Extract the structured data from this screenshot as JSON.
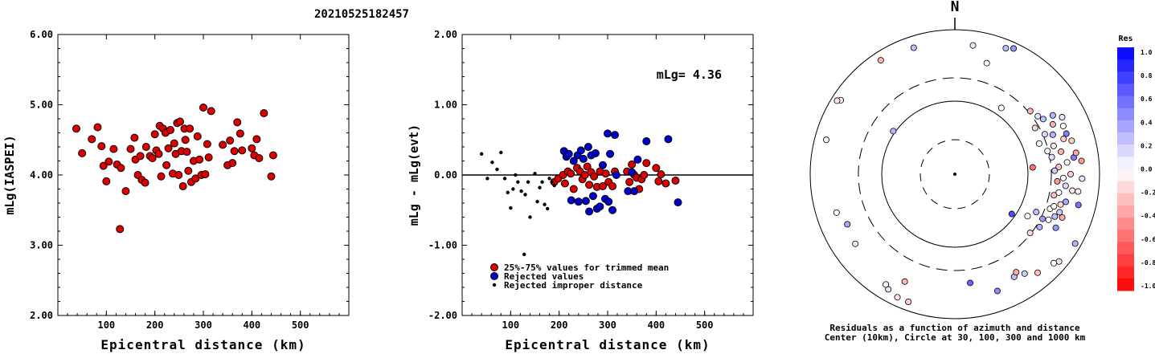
{
  "title": "20210525182457",
  "chart_data": [
    {
      "type": "scatter",
      "xlabel": "Epicentral distance (km)",
      "ylabel": "mLg(IASPEI)",
      "xlim": [
        0,
        600
      ],
      "ylim": [
        2.0,
        6.0
      ],
      "xticks": [
        "100",
        "200",
        "300",
        "400",
        "500"
      ],
      "yticks": [
        "2.00",
        "3.00",
        "4.00",
        "5.00",
        "6.00"
      ],
      "series": [
        {
          "color": "#dd0000",
          "points": [
            [
              38,
              4.66
            ],
            [
              50,
              4.31
            ],
            [
              70,
              4.51
            ],
            [
              82,
              4.68
            ],
            [
              90,
              4.41
            ],
            [
              94,
              4.13
            ],
            [
              100,
              3.91
            ],
            [
              105,
              4.19
            ],
            [
              115,
              4.37
            ],
            [
              122,
              4.15
            ],
            [
              128,
              3.23
            ],
            [
              130,
              4.1
            ],
            [
              140,
              3.77
            ],
            [
              150,
              4.37
            ],
            [
              158,
              4.53
            ],
            [
              160,
              4.22
            ],
            [
              165,
              4.0
            ],
            [
              170,
              4.27
            ],
            [
              173,
              3.93
            ],
            [
              180,
              3.89
            ],
            [
              182,
              4.4
            ],
            [
              190,
              4.27
            ],
            [
              195,
              4.24
            ],
            [
              200,
              4.58
            ],
            [
              203,
              4.35
            ],
            [
              208,
              4.3
            ],
            [
              210,
              4.7
            ],
            [
              213,
              3.98
            ],
            [
              217,
              4.66
            ],
            [
              222,
              4.6
            ],
            [
              224,
              4.14
            ],
            [
              228,
              4.38
            ],
            [
              232,
              4.64
            ],
            [
              237,
              4.02
            ],
            [
              240,
              4.45
            ],
            [
              243,
              4.3
            ],
            [
              246,
              4.74
            ],
            [
              249,
              4.0
            ],
            [
              252,
              4.76
            ],
            [
              255,
              4.34
            ],
            [
              258,
              3.84
            ],
            [
              261,
              4.66
            ],
            [
              263,
              4.5
            ],
            [
              266,
              4.33
            ],
            [
              269,
              4.06
            ],
            [
              272,
              4.66
            ],
            [
              275,
              3.9
            ],
            [
              280,
              4.2
            ],
            [
              284,
              3.95
            ],
            [
              288,
              4.55
            ],
            [
              292,
              4.22
            ],
            [
              296,
              4.0
            ],
            [
              300,
              4.96
            ],
            [
              304,
              4.01
            ],
            [
              308,
              4.44
            ],
            [
              311,
              4.25
            ],
            [
              316,
              4.91
            ],
            [
              340,
              4.43
            ],
            [
              350,
              4.14
            ],
            [
              355,
              4.49
            ],
            [
              360,
              4.17
            ],
            [
              364,
              4.34
            ],
            [
              370,
              4.75
            ],
            [
              376,
              4.59
            ],
            [
              380,
              4.35
            ],
            [
              400,
              4.38
            ],
            [
              405,
              4.28
            ],
            [
              410,
              4.51
            ],
            [
              415,
              4.24
            ],
            [
              425,
              4.88
            ],
            [
              440,
              3.98
            ],
            [
              444,
              4.28
            ]
          ]
        }
      ]
    },
    {
      "type": "scatter",
      "xlabel": "Epicentral distance (km)",
      "ylabel": "mLg - mLg(evt)",
      "xlim": [
        0,
        600
      ],
      "ylim": [
        -2.0,
        2.0
      ],
      "xticks": [
        "100",
        "200",
        "300",
        "400",
        "500"
      ],
      "yticks": [
        "-2.00",
        "-1.00",
        "0.00",
        "1.00",
        "2.00"
      ],
      "annotation": "mLg= 4.36",
      "reference_line": 0.0,
      "legend": [
        "25%-75% values for trimmed mean",
        "Rejected values",
        "Rejected improper distance"
      ],
      "legend_position": "bottom-left",
      "series": [
        {
          "name": "25%-75% values for trimmed mean",
          "color": "#dd0000",
          "points": [
            [
              190,
              -0.1
            ],
            [
              198,
              -0.05
            ],
            [
              208,
              0.0
            ],
            [
              212,
              -0.12
            ],
            [
              218,
              0.05
            ],
            [
              224,
              0.02
            ],
            [
              230,
              -0.2
            ],
            [
              237,
              0.1
            ],
            [
              243,
              0.05
            ],
            [
              248,
              -0.06
            ],
            [
              253,
              0.0
            ],
            [
              258,
              0.12
            ],
            [
              262,
              -0.14
            ],
            [
              266,
              0.04
            ],
            [
              272,
              -0.02
            ],
            [
              278,
              -0.17
            ],
            [
              284,
              0.05
            ],
            [
              290,
              -0.16
            ],
            [
              296,
              0.02
            ],
            [
              302,
              -0.1
            ],
            [
              310,
              -0.16
            ],
            [
              315,
              0.05
            ],
            [
              340,
              0.05
            ],
            [
              345,
              -0.1
            ],
            [
              350,
              0.15
            ],
            [
              355,
              0.0
            ],
            [
              360,
              -0.04
            ],
            [
              365,
              -0.2
            ],
            [
              370,
              -0.06
            ],
            [
              375,
              0.0
            ],
            [
              380,
              0.17
            ],
            [
              400,
              0.1
            ],
            [
              405,
              -0.09
            ],
            [
              410,
              0.01
            ],
            [
              420,
              -0.12
            ],
            [
              440,
              -0.08
            ]
          ]
        },
        {
          "name": "Rejected values",
          "color": "#0000cc",
          "points": [
            [
              210,
              0.34
            ],
            [
              215,
              0.26
            ],
            [
              220,
              0.3
            ],
            [
              225,
              -0.36
            ],
            [
              230,
              0.2
            ],
            [
              238,
              0.28
            ],
            [
              240,
              -0.38
            ],
            [
              245,
              0.35
            ],
            [
              250,
              0.23
            ],
            [
              255,
              -0.37
            ],
            [
              260,
              0.4
            ],
            [
              262,
              -0.52
            ],
            [
              266,
              0.28
            ],
            [
              270,
              -0.3
            ],
            [
              275,
              0.31
            ],
            [
              278,
              -0.48
            ],
            [
              284,
              -0.45
            ],
            [
              290,
              0.14
            ],
            [
              295,
              -0.34
            ],
            [
              300,
              0.59
            ],
            [
              302,
              -0.38
            ],
            [
              305,
              0.3
            ],
            [
              310,
              -0.5
            ],
            [
              315,
              0.57
            ],
            [
              318,
              0.0
            ],
            [
              342,
              -0.23
            ],
            [
              350,
              0.04
            ],
            [
              355,
              -0.23
            ],
            [
              362,
              0.22
            ],
            [
              380,
              0.48
            ],
            [
              425,
              0.51
            ],
            [
              445,
              -0.39
            ]
          ]
        },
        {
          "name": "Rejected improper distance",
          "color": "#000000",
          "points": [
            [
              40,
              0.3
            ],
            [
              52,
              -0.05
            ],
            [
              62,
              0.18
            ],
            [
              72,
              0.08
            ],
            [
              80,
              0.32
            ],
            [
              88,
              -0.05
            ],
            [
              94,
              -0.25
            ],
            [
              100,
              -0.47
            ],
            [
              105,
              -0.2
            ],
            [
              110,
              0.0
            ],
            [
              115,
              -0.1
            ],
            [
              122,
              -0.23
            ],
            [
              128,
              -1.13
            ],
            [
              130,
              -0.28
            ],
            [
              136,
              -0.1
            ],
            [
              140,
              -0.6
            ],
            [
              150,
              0.02
            ],
            [
              155,
              -0.38
            ],
            [
              160,
              -0.18
            ],
            [
              165,
              -0.1
            ],
            [
              170,
              -0.42
            ],
            [
              176,
              -0.48
            ],
            [
              180,
              -0.05
            ],
            [
              185,
              -0.1
            ],
            [
              190,
              -0.15
            ]
          ]
        }
      ]
    },
    {
      "type": "scatter",
      "subtype": "polar",
      "north_label": "N",
      "caption_line1": "Residuals as a function of azimuth and distance",
      "caption_line2": "Center (10km), Circle at 30, 100, 300 and 1000 km",
      "rings_km": [
        10,
        30,
        100,
        300,
        1000
      ],
      "colorbar": {
        "title": "Res",
        "ticks": [
          "1.0",
          "0.8",
          "0.6",
          "0.4",
          "0.2",
          "0.0",
          "-0.2",
          "-0.4",
          "-0.6",
          "-0.8",
          "-1.0"
        ],
        "max_color": "#0000ff",
        "min_color": "#ff0000",
        "zero_color": "#ffffff"
      },
      "points_az_dist_res": [
        [
          8,
          450,
          0.1
        ],
        [
          22,
          470,
          0.25
        ],
        [
          25,
          480,
          0.4
        ],
        [
          16,
          400,
          -0.02
        ],
        [
          -18,
          460,
          0.25
        ],
        [
          -33,
          470,
          -0.3
        ],
        [
          -57,
          470,
          0.0
        ],
        [
          -58,
          480,
          -0.1
        ],
        [
          -75,
          460,
          0.05
        ],
        [
          -55,
          260,
          0.3
        ],
        [
          35,
          280,
          0.0
        ],
        [
          125,
          240,
          0.7
        ],
        [
          85,
          270,
          -0.55
        ],
        [
          150,
          410,
          0.25
        ],
        [
          160,
          430,
          0.45
        ],
        [
          172,
          380,
          0.6
        ],
        [
          -150,
          460,
          0.1
        ],
        [
          -155,
          470,
          -0.1
        ],
        [
          -155,
          410,
          -0.3
        ],
        [
          -160,
          470,
          -0.2
        ],
        [
          -148,
          450,
          0.0
        ],
        [
          -125,
          420,
          0.1
        ],
        [
          -115,
          410,
          0.35
        ],
        [
          -108,
          430,
          0.0
        ],
        [
          120,
          480,
          0.3
        ],
        [
          130,
          470,
          -0.1
        ],
        [
          132,
          460,
          0.0
        ],
        [
          140,
          445,
          -0.25
        ],
        [
          145,
          420,
          0.2
        ],
        [
          148,
          400,
          -0.35
        ],
        [
          128,
          330,
          -0.15
        ],
        [
          120,
          290,
          0.0
        ],
        [
          122,
          345,
          0.3
        ],
        [
          117,
          340,
          0.4
        ],
        [
          110,
          350,
          0.0
        ],
        [
          115,
          310,
          0.25
        ],
        [
          50,
          340,
          -0.3
        ],
        [
          55,
          350,
          0.1
        ],
        [
          58,
          360,
          0.25
        ],
        [
          60,
          320,
          -0.15
        ],
        [
          63,
          380,
          -0.3
        ],
        [
          66,
          340,
          0.15
        ],
        [
          68,
          365,
          0.3
        ],
        [
          70,
          310,
          0.0
        ],
        [
          72,
          395,
          -0.2
        ],
        [
          74,
          355,
          -0.1
        ],
        [
          76,
          330,
          0.0
        ],
        [
          78,
          375,
          -0.3
        ],
        [
          80,
          340,
          0.1
        ],
        [
          82,
          415,
          0.5
        ],
        [
          84,
          390,
          0.0
        ],
        [
          86,
          360,
          -0.25
        ],
        [
          88,
          345,
          0.2
        ],
        [
          90,
          400,
          -0.2
        ],
        [
          92,
          375,
          0.0
        ],
        [
          94,
          355,
          -0.4
        ],
        [
          96,
          385,
          0.15
        ],
        [
          98,
          410,
          -0.1
        ],
        [
          100,
          365,
          0.0
        ],
        [
          102,
          350,
          -0.25
        ],
        [
          104,
          395,
          0.35
        ],
        [
          106,
          380,
          -0.15
        ],
        [
          108,
          360,
          0.0
        ],
        [
          110,
          385,
          0.2
        ],
        [
          112,
          400,
          -0.35
        ],
        [
          113,
          375,
          0.25
        ],
        [
          116,
          360,
          0.0
        ],
        [
          118,
          395,
          0.4
        ],
        [
          70,
          410,
          0.5
        ],
        [
          62,
          420,
          0.1
        ],
        [
          84,
          440,
          -0.4
        ],
        [
          104,
          440,
          0.55
        ],
        [
          98,
          430,
          0.0
        ],
        [
          92,
          440,
          0.1
        ],
        [
          80,
          425,
          -0.35
        ],
        [
          74,
          420,
          -0.2
        ],
        [
          66,
          410,
          0.0
        ],
        [
          59,
          395,
          0.3
        ]
      ]
    }
  ]
}
